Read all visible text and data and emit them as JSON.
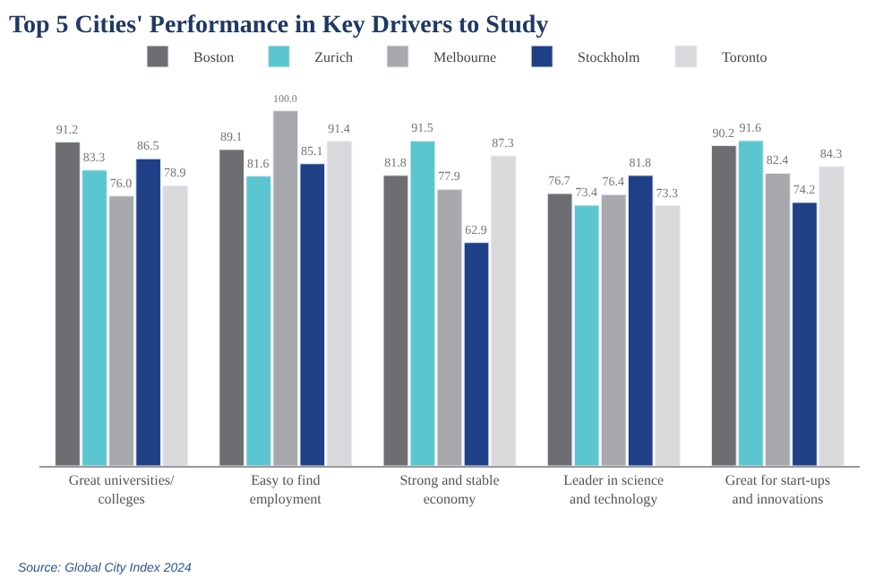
{
  "chart_data": {
    "type": "bar",
    "title": "Top 5 Cities' Performance in Key Drivers to Study",
    "categories": [
      "Great universities/\ncolleges",
      "Easy to find\nemployment",
      "Strong and stable\neconomy",
      "Leader in science\nand technology",
      "Great for start-ups\nand innovations"
    ],
    "series": [
      {
        "name": "Boston",
        "color": "#6d6e71",
        "values": [
          91.2,
          89.1,
          81.8,
          76.7,
          90.2
        ],
        "value_labels": [
          "91.2",
          "89.1",
          "81.8",
          "76.7",
          "90.2"
        ]
      },
      {
        "name": "Zurich",
        "color": "#5cc6d0",
        "values": [
          83.3,
          81.6,
          91.5,
          73.4,
          91.6
        ],
        "value_labels": [
          "83.3",
          "81.6",
          "91.5",
          "73.4",
          "91.6"
        ]
      },
      {
        "name": "Melbourne",
        "color": "#a7a9ac",
        "values": [
          76.0,
          100.0,
          77.9,
          76.4,
          82.4
        ],
        "value_labels": [
          "76.0",
          "100.0",
          "77.9",
          "76.4",
          "82.4"
        ]
      },
      {
        "name": "Stockholm",
        "color": "#1f3f86",
        "values": [
          86.5,
          85.1,
          62.9,
          81.8,
          74.2
        ],
        "value_labels": [
          "86.5",
          "85.1",
          "62.9",
          "81.8",
          "74.2"
        ]
      },
      {
        "name": "Toronto",
        "color": "#d9d9db",
        "values": [
          78.9,
          91.4,
          87.3,
          73.3,
          84.3
        ],
        "value_labels": [
          "78.9",
          "91.4",
          "87.3",
          "73.3",
          "84.3"
        ]
      }
    ],
    "legend": "top",
    "annotations": [
      "Source: Global City Index 2024"
    ]
  }
}
